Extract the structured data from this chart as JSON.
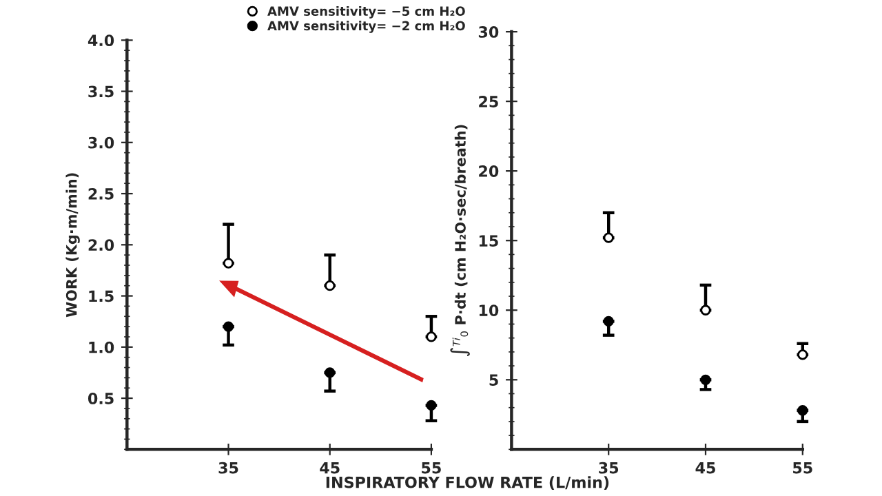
{
  "chart_data": [
    {
      "type": "scatter",
      "xlabel": "INSPIRATORY FLOW RATE (L/min)",
      "ylabel": "WORK (Kg·m/min)",
      "x": [
        35,
        45,
        55
      ],
      "xlim": [
        25,
        55
      ],
      "xticks": [
        35,
        45,
        55
      ],
      "ylim": [
        0,
        4.0
      ],
      "yticks": [
        {
          "value": 0.5,
          "label": "0.5"
        },
        {
          "value": 1.0,
          "label": "1.0"
        },
        {
          "value": 1.5,
          "label": "1.5"
        },
        {
          "value": 2.0,
          "label": "2.0"
        },
        {
          "value": 2.5,
          "label": "2.5"
        },
        {
          "value": 3.0,
          "label": "3.0"
        },
        {
          "value": 3.5,
          "label": "3.5"
        },
        {
          "value": 4.0,
          "label": "4.0"
        }
      ],
      "marker": "circle",
      "legend": "top",
      "grid": false,
      "series": [
        {
          "name": "AMV sensitivity= −5 cm H₂O",
          "color": "#000000",
          "values": [
            1.82,
            1.6,
            1.1
          ],
          "errors": [
            [
              1.82,
              2.2
            ],
            [
              1.6,
              1.9
            ],
            [
              1.1,
              1.3
            ]
          ]
        },
        {
          "name": "AMV sensitivity= −2 cm H₂O",
          "color": "#000000",
          "values": [
            1.2,
            0.75,
            0.43
          ],
          "errors": [
            [
              1.02,
              1.2
            ],
            [
              0.57,
              0.75
            ],
            [
              0.28,
              0.43
            ]
          ]
        }
      ]
    },
    {
      "type": "scatter",
      "ylabel": "∫$^{Ti}$$_{0}$ P·dt (cm H₂O·sec/breath)",
      "x": [
        35,
        45,
        55
      ],
      "xlim": [
        25,
        55
      ],
      "xticks": [
        35,
        45,
        55
      ],
      "ylim": [
        0,
        30
      ],
      "yticks": [
        5,
        10,
        15,
        20,
        25,
        30
      ],
      "marker": "circle",
      "grid": false,
      "series": [
        {
          "color": "#000000",
          "values": [
            15.2,
            10.0,
            6.8
          ],
          "errors": [
            [
              15.2,
              17.0
            ],
            [
              10.0,
              11.8
            ],
            [
              6.8,
              7.6
            ]
          ]
        },
        {
          "color": "#000000",
          "values": [
            9.2,
            5.0,
            2.8
          ],
          "errors": [
            [
              8.2,
              9.2
            ],
            [
              4.3,
              5.0
            ],
            [
              2.0,
              2.8
            ]
          ]
        }
      ]
    }
  ]
}
